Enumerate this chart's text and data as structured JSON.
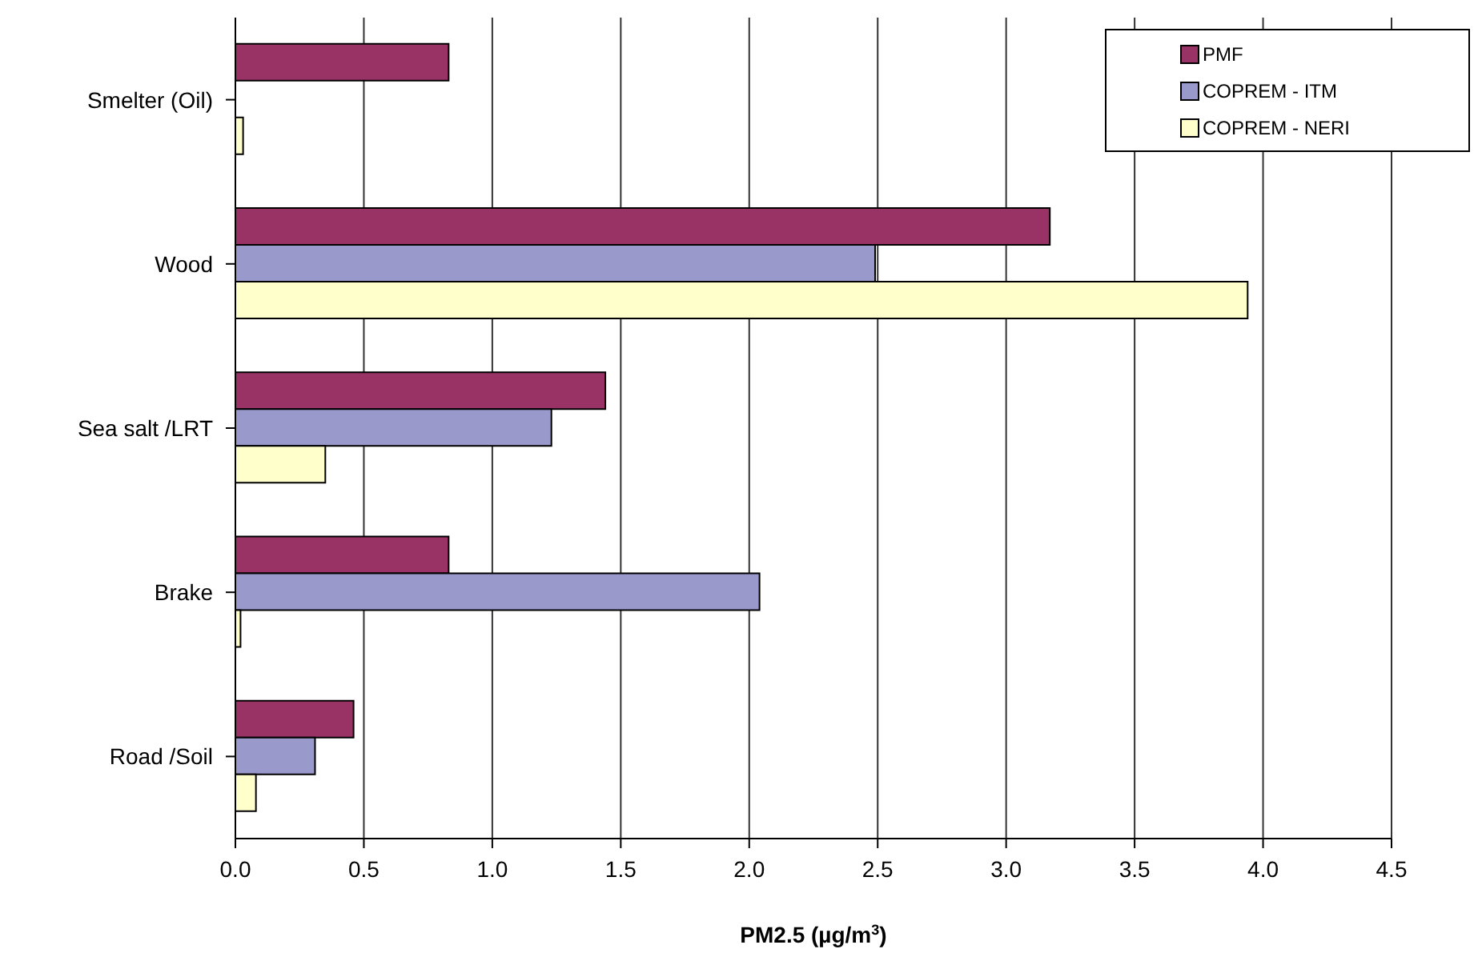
{
  "chart_data": {
    "type": "bar",
    "orientation": "horizontal",
    "xlabel": "PM2.5 (µg/m$^{3}$)",
    "categories": [
      "Smelter (Oil)",
      "Wood",
      "Sea salt /LRT",
      "Brake",
      "Road /Soil"
    ],
    "series": [
      {
        "name": "PMF",
        "color": "#993366",
        "values": [
          0.83,
          3.17,
          1.44,
          0.83,
          0.46
        ]
      },
      {
        "name": "COPREM - ITM",
        "color": "#9999cc",
        "values": [
          null,
          2.49,
          1.23,
          2.04,
          0.31
        ]
      },
      {
        "name": "COPREM - NERI",
        "color": "#ffffcc",
        "values": [
          0.03,
          3.94,
          0.35,
          0.02,
          0.08
        ]
      }
    ],
    "xlim": [
      0,
      4.5
    ],
    "xticks": [
      {
        "value": 0,
        "label": "0.0"
      },
      0.5,
      {
        "value": 1,
        "label": "1.0"
      },
      1.5,
      {
        "value": 2,
        "label": "2.0"
      },
      2.5,
      {
        "value": 3,
        "label": "3.0"
      },
      3.5,
      {
        "value": 4,
        "label": "4.0"
      },
      4.5
    ],
    "grid": "x",
    "legend": "top right"
  }
}
